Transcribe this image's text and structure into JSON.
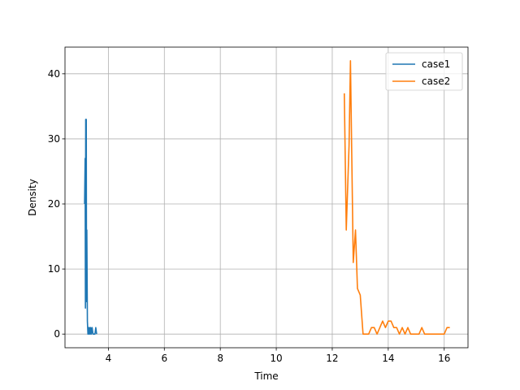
{
  "chart_data": {
    "type": "line",
    "title": "",
    "xlabel": "Time",
    "ylabel": "Density",
    "xlim": [
      2.45,
      16.85
    ],
    "ylim": [
      -2.1,
      44.1
    ],
    "xticks": [
      4,
      6,
      8,
      10,
      12,
      14,
      16
    ],
    "yticks": [
      0,
      10,
      20,
      30,
      40
    ],
    "grid": true,
    "legend": "top-right",
    "series": [
      {
        "name": "case1",
        "color": "#1f77b4",
        "x": [
          3.15,
          3.17,
          3.18,
          3.19,
          3.2,
          3.21,
          3.22,
          3.23,
          3.24,
          3.25,
          3.27,
          3.29,
          3.31,
          3.33,
          3.35,
          3.37,
          3.39,
          3.42,
          3.45,
          3.48,
          3.52,
          3.55,
          3.58
        ],
        "y": [
          20,
          27,
          4,
          33,
          20,
          33,
          5,
          16,
          9,
          2,
          0,
          1,
          0,
          1,
          0,
          1,
          0,
          1,
          0,
          0,
          0,
          1,
          0
        ]
      },
      {
        "name": "case2",
        "color": "#ff7f0e",
        "x": [
          12.43,
          12.5,
          12.6,
          12.65,
          12.75,
          12.83,
          12.9,
          13.0,
          13.1,
          13.2,
          13.3,
          13.4,
          13.5,
          13.6,
          13.7,
          13.8,
          13.9,
          14.0,
          14.1,
          14.2,
          14.3,
          14.4,
          14.5,
          14.6,
          14.7,
          14.8,
          14.9,
          15.0,
          15.1,
          15.2,
          15.3,
          15.4,
          15.5,
          15.6,
          15.7,
          15.8,
          15.9,
          16.0,
          16.1,
          16.2
        ],
        "y": [
          37,
          16,
          29,
          42,
          11,
          16,
          7,
          6,
          0,
          0,
          0,
          1,
          1,
          0,
          1,
          2,
          1,
          2,
          2,
          1,
          1,
          0,
          1,
          0,
          1,
          0,
          0,
          0,
          0,
          1,
          0,
          0,
          0,
          0,
          0,
          0,
          0,
          0,
          1,
          1
        ]
      }
    ]
  }
}
